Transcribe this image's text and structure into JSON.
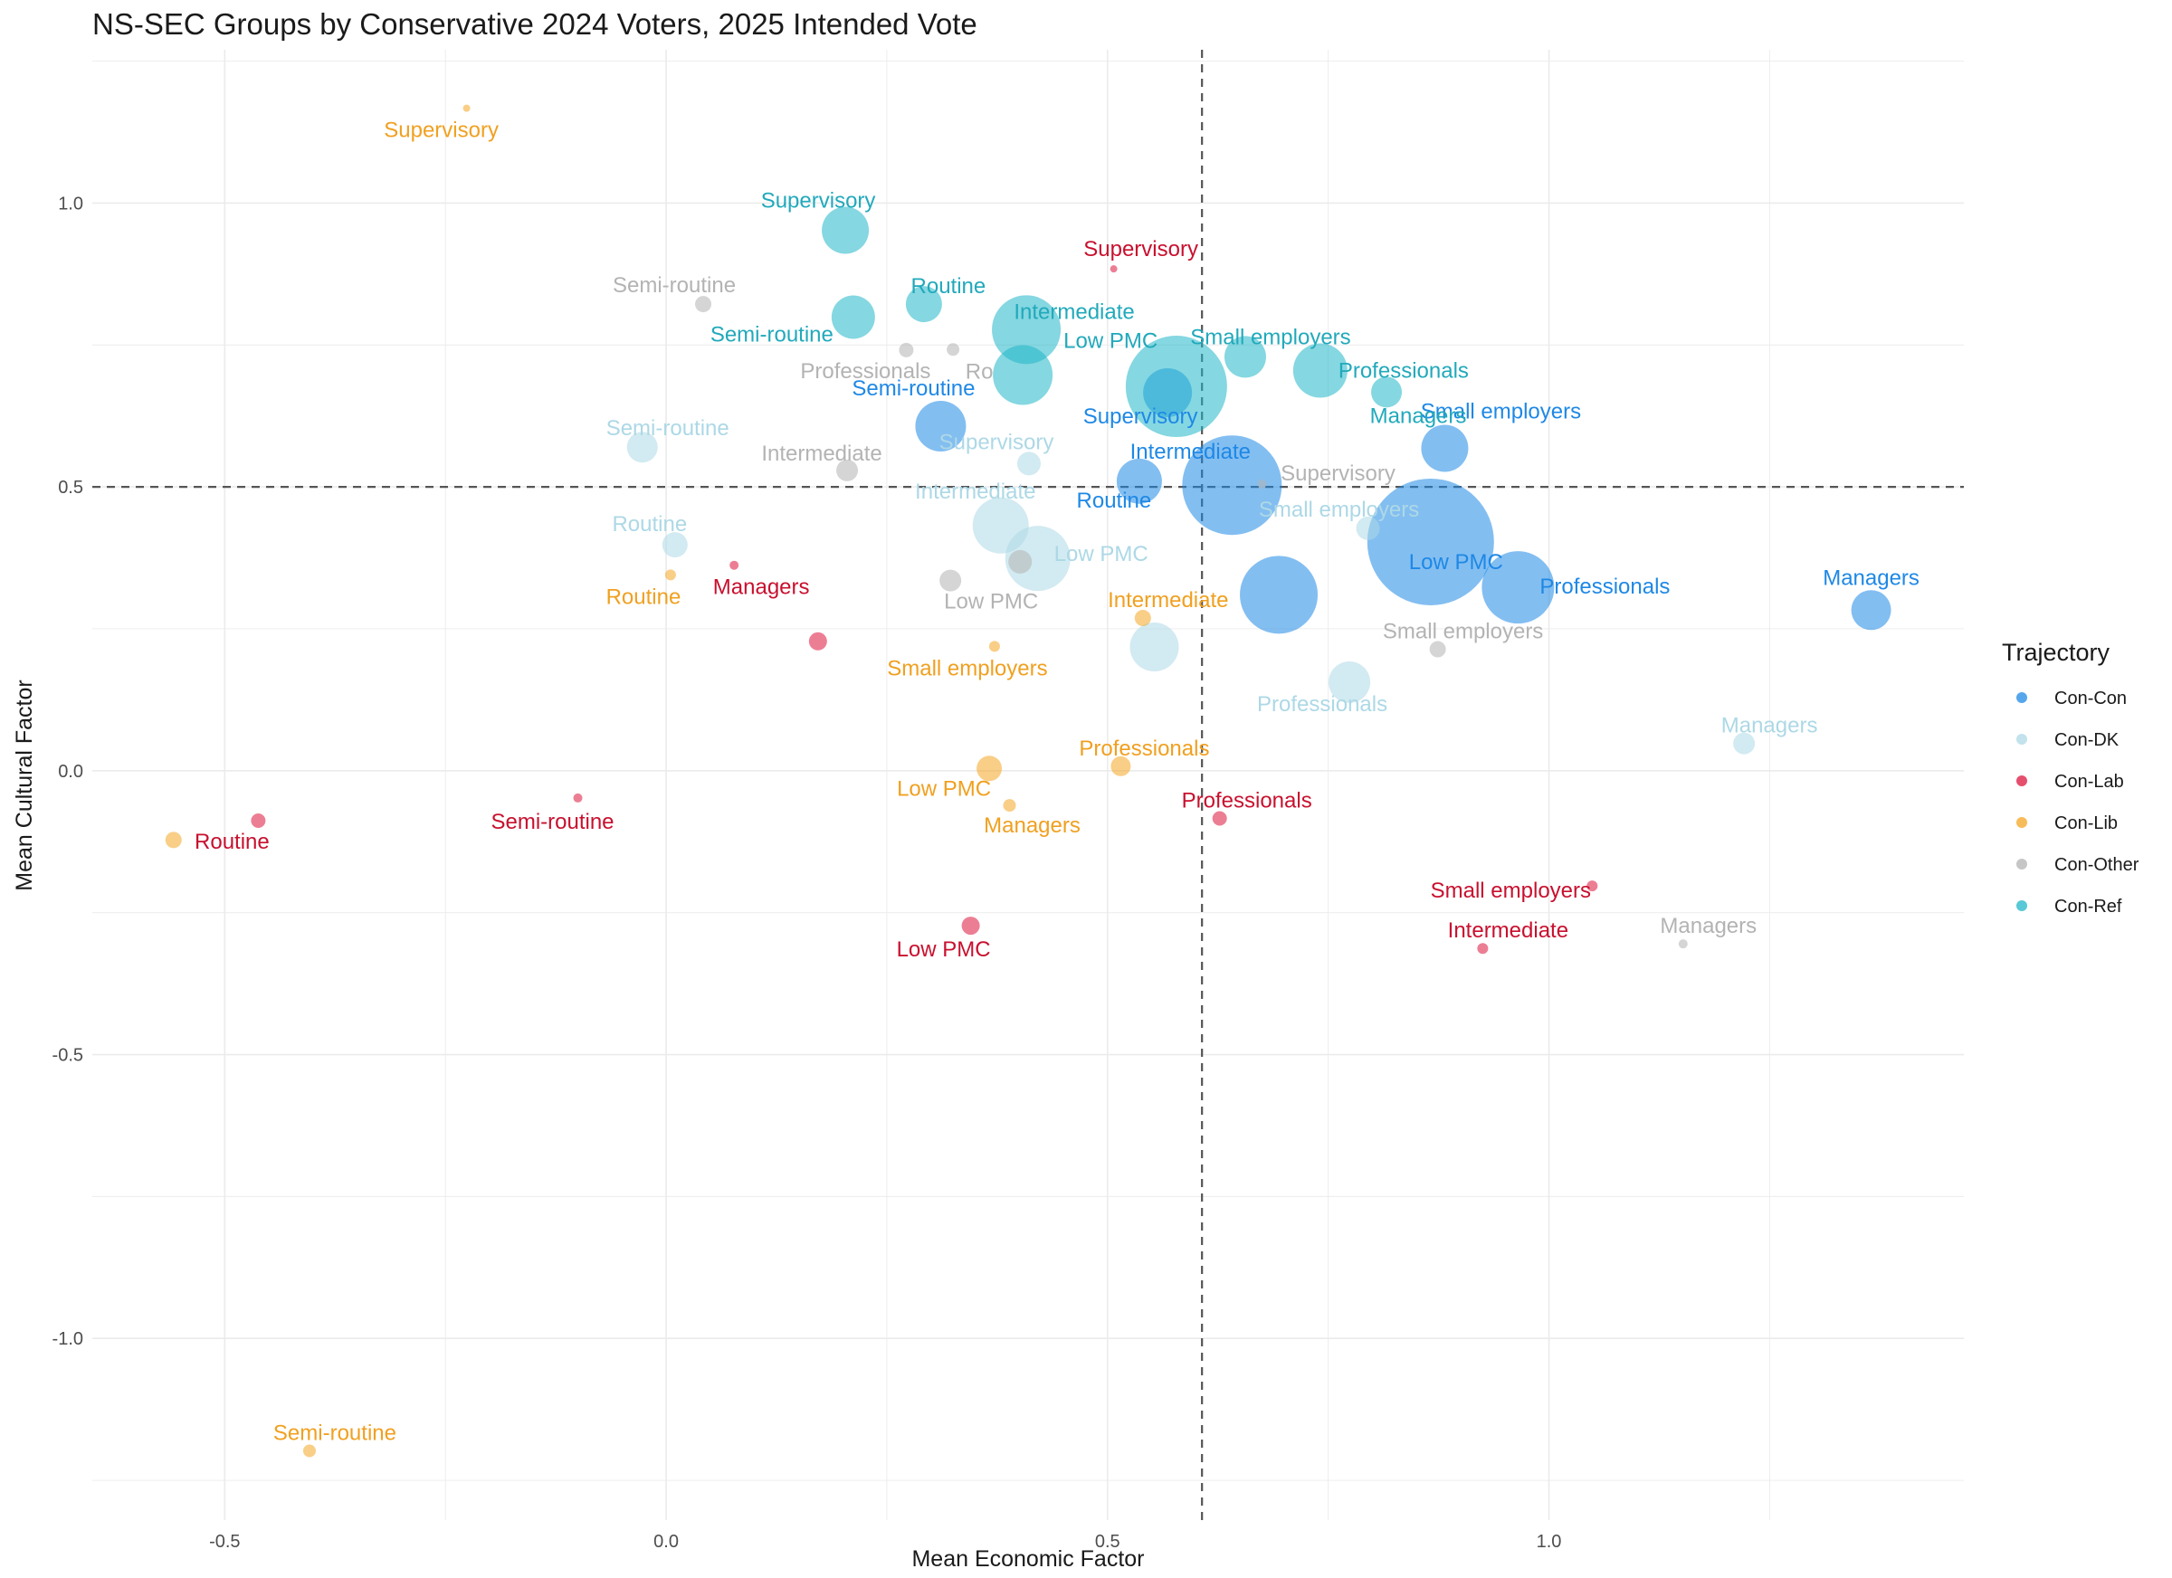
{
  "chart_data": {
    "type": "scatter",
    "title": "NS-SEC Groups by Conservative 2024 Voters, 2025 Intended Vote",
    "xlabel": "Mean Economic Factor",
    "ylabel": "Mean Cultural Factor",
    "xlim": [
      -0.65,
      1.47
    ],
    "ylim": [
      -1.32,
      1.27
    ],
    "x_ticks": [
      -0.5,
      0.0,
      0.5,
      1.0
    ],
    "x_tick_labels": [
      "-0.5",
      "0.0",
      "0.5",
      "1.0"
    ],
    "y_ticks": [
      -1.0,
      -0.5,
      0.0,
      0.5,
      1.0
    ],
    "y_tick_labels": [
      "-1.0",
      "-0.5",
      "0.0",
      "0.5",
      "1.0"
    ],
    "reference_lines": {
      "x": 0.607,
      "y": 0.5
    },
    "legend": {
      "title": "Trajectory",
      "placement": "right",
      "entries": [
        {
          "name": "Con-Con",
          "color": "#1e88e5"
        },
        {
          "name": "Con-DK",
          "color": "#add8e6"
        },
        {
          "name": "Con-Lab",
          "color": "#dc143c"
        },
        {
          "name": "Con-Lib",
          "color": "#f4a623"
        },
        {
          "name": "Con-Other",
          "color": "#b3b3b3"
        },
        {
          "name": "Con-Ref",
          "color": "#21b6c9"
        }
      ]
    },
    "series": [
      {
        "name": "Con-Con",
        "color": "#1e88e5",
        "label_color": "#1e88e5",
        "points": [
          {
            "label": "Managers",
            "x": 1.365,
            "y": 0.283,
            "size": 22
          },
          {
            "label": "Small employers",
            "x": 0.882,
            "y": 0.568,
            "size": 26
          },
          {
            "label": "Low PMC",
            "x": 0.866,
            "y": 0.403,
            "size": 70
          },
          {
            "label": "Professionals",
            "x": 0.965,
            "y": 0.323,
            "size": 40
          },
          {
            "label": "Intermediate",
            "x": 0.641,
            "y": 0.503,
            "size": 55
          },
          {
            "label": "Routine",
            "x": 0.536,
            "y": 0.51,
            "size": 25
          },
          {
            "label": "Supervisory",
            "x": 0.568,
            "y": 0.666,
            "size": 27
          },
          {
            "label": "Semi-routine",
            "x": 0.311,
            "y": 0.607,
            "size": 28
          },
          {
            "label": "",
            "x": 0.694,
            "y": 0.31,
            "size": 43
          }
        ]
      },
      {
        "name": "Con-DK",
        "color": "#add8e6",
        "label_color": "#add8e6",
        "points": [
          {
            "label": "Managers",
            "x": 1.221,
            "y": 0.048,
            "size": 12
          },
          {
            "label": "Small employers",
            "x": 0.795,
            "y": 0.427,
            "size": 13
          },
          {
            "label": "Professionals",
            "x": 0.774,
            "y": 0.156,
            "size": 23
          },
          {
            "label": "Intermediate",
            "x": 0.379,
            "y": 0.432,
            "size": 31
          },
          {
            "label": "Supervisory",
            "x": 0.411,
            "y": 0.541,
            "size": 13
          },
          {
            "label": "Low PMC",
            "x": 0.421,
            "y": 0.374,
            "size": 36
          },
          {
            "label": "Semi-routine",
            "x": -0.027,
            "y": 0.57,
            "size": 17
          },
          {
            "label": "Routine",
            "x": 0.01,
            "y": 0.398,
            "size": 14
          },
          {
            "label": "",
            "x": 0.553,
            "y": 0.218,
            "size": 27
          }
        ]
      },
      {
        "name": "Con-Lab",
        "color": "#dc143c",
        "label_color": "#c8102e",
        "points": [
          {
            "label": "Supervisory",
            "x": 0.507,
            "y": 0.884,
            "size": 4
          },
          {
            "label": "Managers",
            "x": 0.077,
            "y": 0.362,
            "size": 5
          },
          {
            "label": "",
            "x": 0.172,
            "y": 0.228,
            "size": 10
          },
          {
            "label": "Semi-routine",
            "x": -0.1,
            "y": -0.048,
            "size": 5
          },
          {
            "label": "Routine",
            "x": -0.462,
            "y": -0.088,
            "size": 8
          },
          {
            "label": "Professionals",
            "x": 0.627,
            "y": -0.084,
            "size": 8
          },
          {
            "label": "Low PMC",
            "x": 0.345,
            "y": -0.273,
            "size": 10
          },
          {
            "label": "Small employers",
            "x": 1.049,
            "y": -0.203,
            "size": 6
          },
          {
            "label": "Intermediate",
            "x": 0.925,
            "y": -0.313,
            "size": 6
          }
        ]
      },
      {
        "name": "Con-Lib",
        "color": "#f4a623",
        "label_color": "#f0a020",
        "points": [
          {
            "label": "Supervisory",
            "x": -0.226,
            "y": 1.167,
            "size": 4
          },
          {
            "label": "Routine",
            "x": 0.005,
            "y": 0.345,
            "size": 6
          },
          {
            "label": "Intermediate",
            "x": 0.54,
            "y": 0.269,
            "size": 9
          },
          {
            "label": "Small employers",
            "x": 0.372,
            "y": 0.219,
            "size": 6
          },
          {
            "label": "Professionals",
            "x": 0.515,
            "y": 0.008,
            "size": 11
          },
          {
            "label": "Low PMC",
            "x": 0.366,
            "y": 0.004,
            "size": 14
          },
          {
            "label": "Managers",
            "x": 0.389,
            "y": -0.061,
            "size": 7
          },
          {
            "label": "",
            "x": -0.558,
            "y": -0.122,
            "size": 9
          },
          {
            "label": "Semi-routine",
            "x": -0.404,
            "y": -1.198,
            "size": 7
          }
        ]
      },
      {
        "name": "Con-Other",
        "color": "#b3b3b3",
        "label_color": "#b3b3b3",
        "points": [
          {
            "label": "Semi-routine",
            "x": 0.042,
            "y": 0.822,
            "size": 9
          },
          {
            "label": "Professionals",
            "x": 0.272,
            "y": 0.741,
            "size": 8
          },
          {
            "label": "Ro",
            "x": 0.325,
            "y": 0.742,
            "size": 7
          },
          {
            "label": "Intermediate",
            "x": 0.205,
            "y": 0.529,
            "size": 12
          },
          {
            "label": "Low PMC",
            "x": 0.322,
            "y": 0.335,
            "size": 12
          },
          {
            "label": "",
            "x": 0.401,
            "y": 0.368,
            "size": 13
          },
          {
            "label": "Supervisory",
            "x": 0.675,
            "y": 0.505,
            "size": 5
          },
          {
            "label": "Small employers",
            "x": 0.874,
            "y": 0.214,
            "size": 9
          },
          {
            "label": "Managers",
            "x": 1.152,
            "y": -0.305,
            "size": 5
          }
        ]
      },
      {
        "name": "Con-Ref",
        "color": "#21b6c9",
        "label_color": "#21a9bb",
        "points": [
          {
            "label": "Supervisory",
            "x": 0.203,
            "y": 0.952,
            "size": 26
          },
          {
            "label": "Semi-routine",
            "x": 0.212,
            "y": 0.799,
            "size": 24
          },
          {
            "label": "Routine",
            "x": 0.292,
            "y": 0.822,
            "size": 20
          },
          {
            "label": "Intermediate",
            "x": 0.408,
            "y": 0.777,
            "size": 38
          },
          {
            "label": "Low PMC",
            "x": 0.404,
            "y": 0.697,
            "size": 33
          },
          {
            "label": "",
            "x": 0.578,
            "y": 0.677,
            "size": 56
          },
          {
            "label": "Small employers",
            "x": 0.656,
            "y": 0.729,
            "size": 23
          },
          {
            "label": "Professionals",
            "x": 0.741,
            "y": 0.705,
            "size": 30
          },
          {
            "label": "Managers",
            "x": 0.816,
            "y": 0.667,
            "size": 17
          }
        ]
      }
    ]
  }
}
